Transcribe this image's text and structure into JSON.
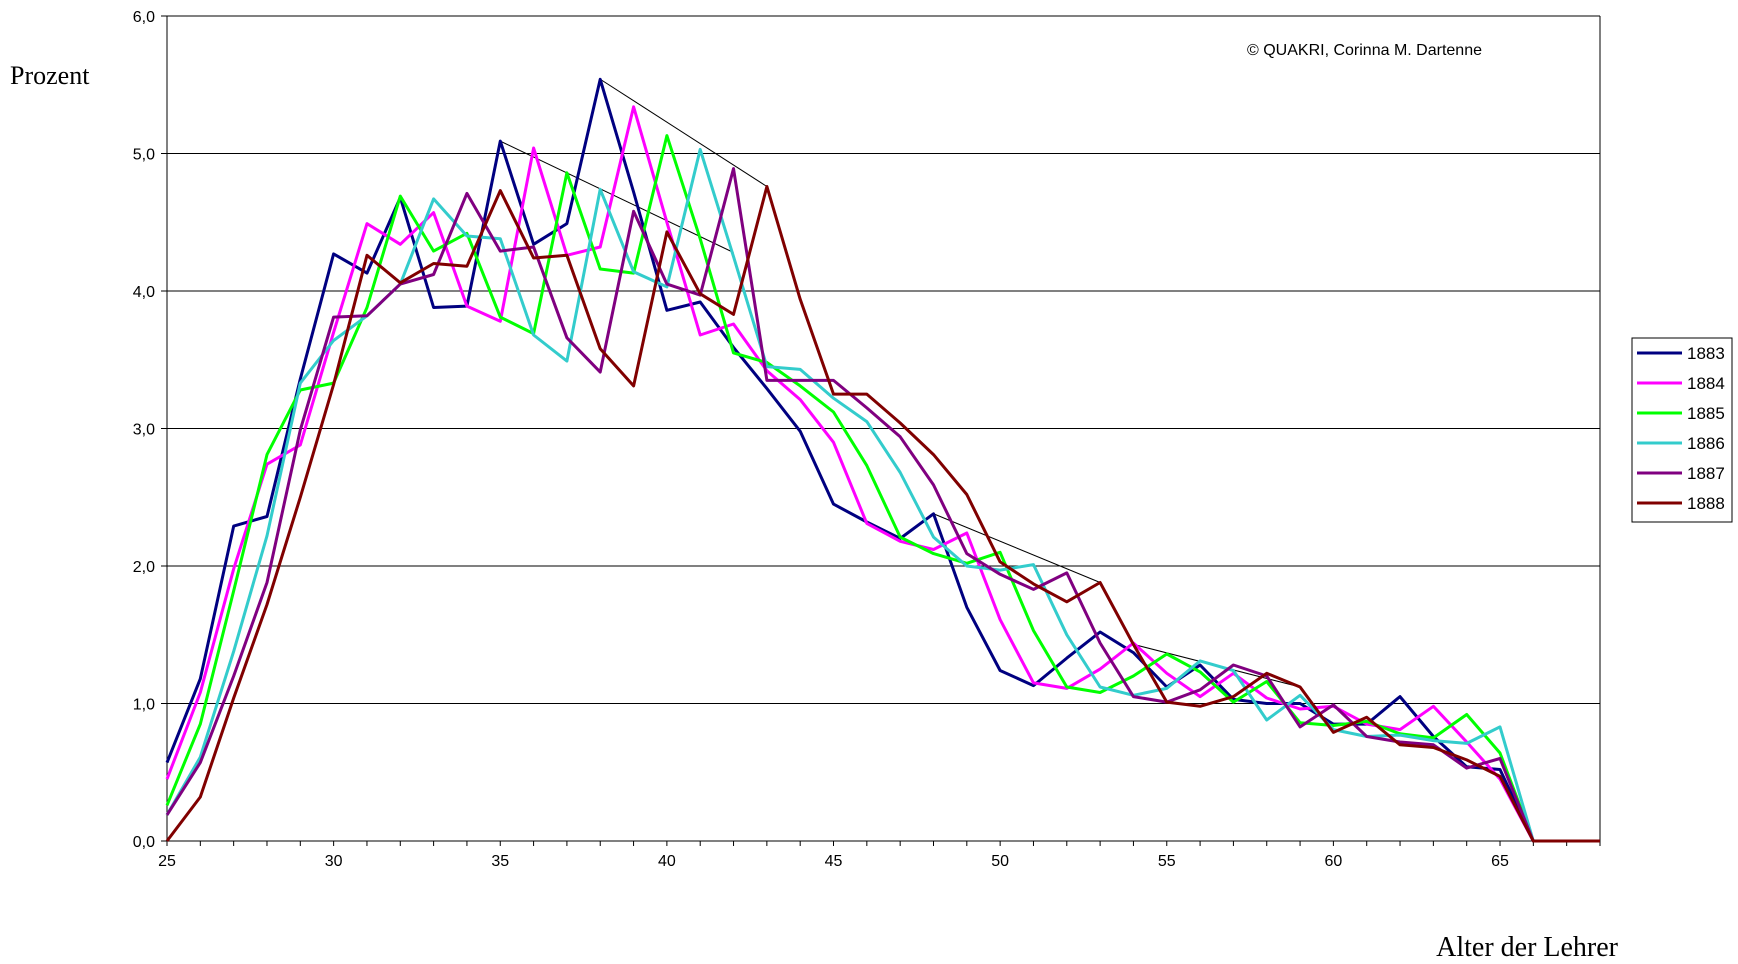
{
  "chart_data": {
    "type": "line",
    "ylabel": "Prozent",
    "xlabel": "Alter der Lehrer",
    "copyright": "© QUAKRI, Corinna M. Dartenne",
    "xlim": [
      25,
      68
    ],
    "ylim": [
      0,
      6
    ],
    "x_ticks": [
      25,
      30,
      35,
      40,
      45,
      50,
      55,
      60,
      65
    ],
    "y_ticks": [
      0,
      1,
      2,
      3,
      4,
      5,
      6
    ],
    "y_tick_labels": [
      "0,0",
      "1,0",
      "2,0",
      "3,0",
      "4,0",
      "5,0",
      "6,0"
    ],
    "grid": "horizontal",
    "legend_position": "right",
    "x": [
      25,
      26,
      27,
      28,
      29,
      30,
      31,
      32,
      33,
      34,
      35,
      36,
      37,
      38,
      39,
      40,
      41,
      42,
      43,
      44,
      45,
      46,
      47,
      48,
      49,
      50,
      51,
      52,
      53,
      54,
      55,
      56,
      57,
      58,
      59,
      60,
      61,
      62,
      63,
      64,
      65,
      66,
      67,
      68
    ],
    "series": [
      {
        "name": "1883",
        "color": "#000080",
        "values": [
          0.57,
          1.18,
          2.29,
          2.36,
          3.36,
          4.27,
          4.13,
          4.68,
          3.88,
          3.89,
          5.09,
          4.34,
          4.49,
          5.54,
          4.72,
          3.86,
          3.92,
          3.59,
          3.29,
          2.98,
          2.45,
          2.32,
          2.2,
          2.38,
          1.7,
          1.24,
          1.13,
          1.33,
          1.52,
          1.37,
          1.12,
          1.28,
          1.03,
          1.0,
          1.0,
          0.85,
          0.85,
          1.05,
          0.76,
          0.54,
          0.52,
          0,
          0,
          0
        ]
      },
      {
        "name": "1884",
        "color": "#FF00FF",
        "values": [
          0.45,
          1.08,
          1.98,
          2.74,
          2.88,
          3.7,
          4.49,
          4.34,
          4.57,
          3.89,
          3.78,
          5.04,
          4.26,
          4.32,
          5.34,
          4.5,
          3.68,
          3.76,
          3.42,
          3.21,
          2.9,
          2.31,
          2.18,
          2.12,
          2.24,
          1.61,
          1.15,
          1.11,
          1.25,
          1.44,
          1.22,
          1.05,
          1.22,
          1.04,
          0.96,
          0.98,
          0.85,
          0.81,
          0.98,
          0.72,
          0.45,
          0,
          0,
          0
        ]
      },
      {
        "name": "1885",
        "color": "#00FF00",
        "values": [
          0.26,
          0.85,
          1.82,
          2.81,
          3.28,
          3.33,
          3.88,
          4.69,
          4.29,
          4.42,
          3.81,
          3.69,
          4.86,
          4.16,
          4.13,
          5.13,
          4.38,
          3.55,
          3.48,
          3.31,
          3.12,
          2.73,
          2.21,
          2.09,
          2.02,
          2.1,
          1.53,
          1.12,
          1.08,
          1.2,
          1.36,
          1.23,
          1.01,
          1.16,
          0.86,
          0.84,
          0.87,
          0.78,
          0.75,
          0.92,
          0.64,
          0,
          0,
          0
        ]
      },
      {
        "name": "1886",
        "color": "#33CCCC",
        "values": [
          0.19,
          0.61,
          1.38,
          2.22,
          3.33,
          3.64,
          3.82,
          4.05,
          4.67,
          4.4,
          4.38,
          3.68,
          3.49,
          4.74,
          4.14,
          4.03,
          5.03,
          4.25,
          3.45,
          3.43,
          3.22,
          3.05,
          2.68,
          2.21,
          2.0,
          1.97,
          2.01,
          1.5,
          1.12,
          1.06,
          1.11,
          1.31,
          1.24,
          0.88,
          1.06,
          0.81,
          0.76,
          0.77,
          0.73,
          0.71,
          0.83,
          0,
          0,
          0
        ]
      },
      {
        "name": "1887",
        "color": "#800080",
        "values": [
          0.19,
          0.57,
          1.2,
          1.88,
          2.99,
          3.81,
          3.82,
          4.05,
          4.12,
          4.71,
          4.29,
          4.32,
          3.66,
          3.41,
          4.58,
          4.05,
          3.97,
          4.89,
          3.35,
          3.35,
          3.35,
          3.15,
          2.94,
          2.59,
          2.09,
          1.94,
          1.83,
          1.95,
          1.44,
          1.05,
          1.01,
          1.1,
          1.28,
          1.2,
          0.83,
          0.99,
          0.76,
          0.72,
          0.7,
          0.53,
          0.6,
          0,
          0,
          0
        ]
      },
      {
        "name": "1888",
        "color": "#800000",
        "values": [
          0,
          0.32,
          1.04,
          1.72,
          2.5,
          3.32,
          4.26,
          4.06,
          4.2,
          4.18,
          4.73,
          4.24,
          4.26,
          3.58,
          3.31,
          4.43,
          3.98,
          3.83,
          4.76,
          3.94,
          3.25,
          3.25,
          3.04,
          2.81,
          2.52,
          2.03,
          1.87,
          1.74,
          1.88,
          1.43,
          1.01,
          0.98,
          1.05,
          1.22,
          1.12,
          0.79,
          0.9,
          0.7,
          0.68,
          0.59,
          0.47,
          0,
          0,
          0
        ]
      }
    ],
    "trend_lines": [
      {
        "from": [
          35,
          5.09
        ],
        "to": [
          42,
          4.28
        ]
      },
      {
        "from": [
          38,
          5.54
        ],
        "to": [
          43,
          4.76
        ]
      },
      {
        "from": [
          48,
          2.38
        ],
        "to": [
          53,
          1.88
        ]
      },
      {
        "from": [
          54,
          1.43
        ],
        "to": [
          59,
          1.12
        ]
      }
    ]
  }
}
